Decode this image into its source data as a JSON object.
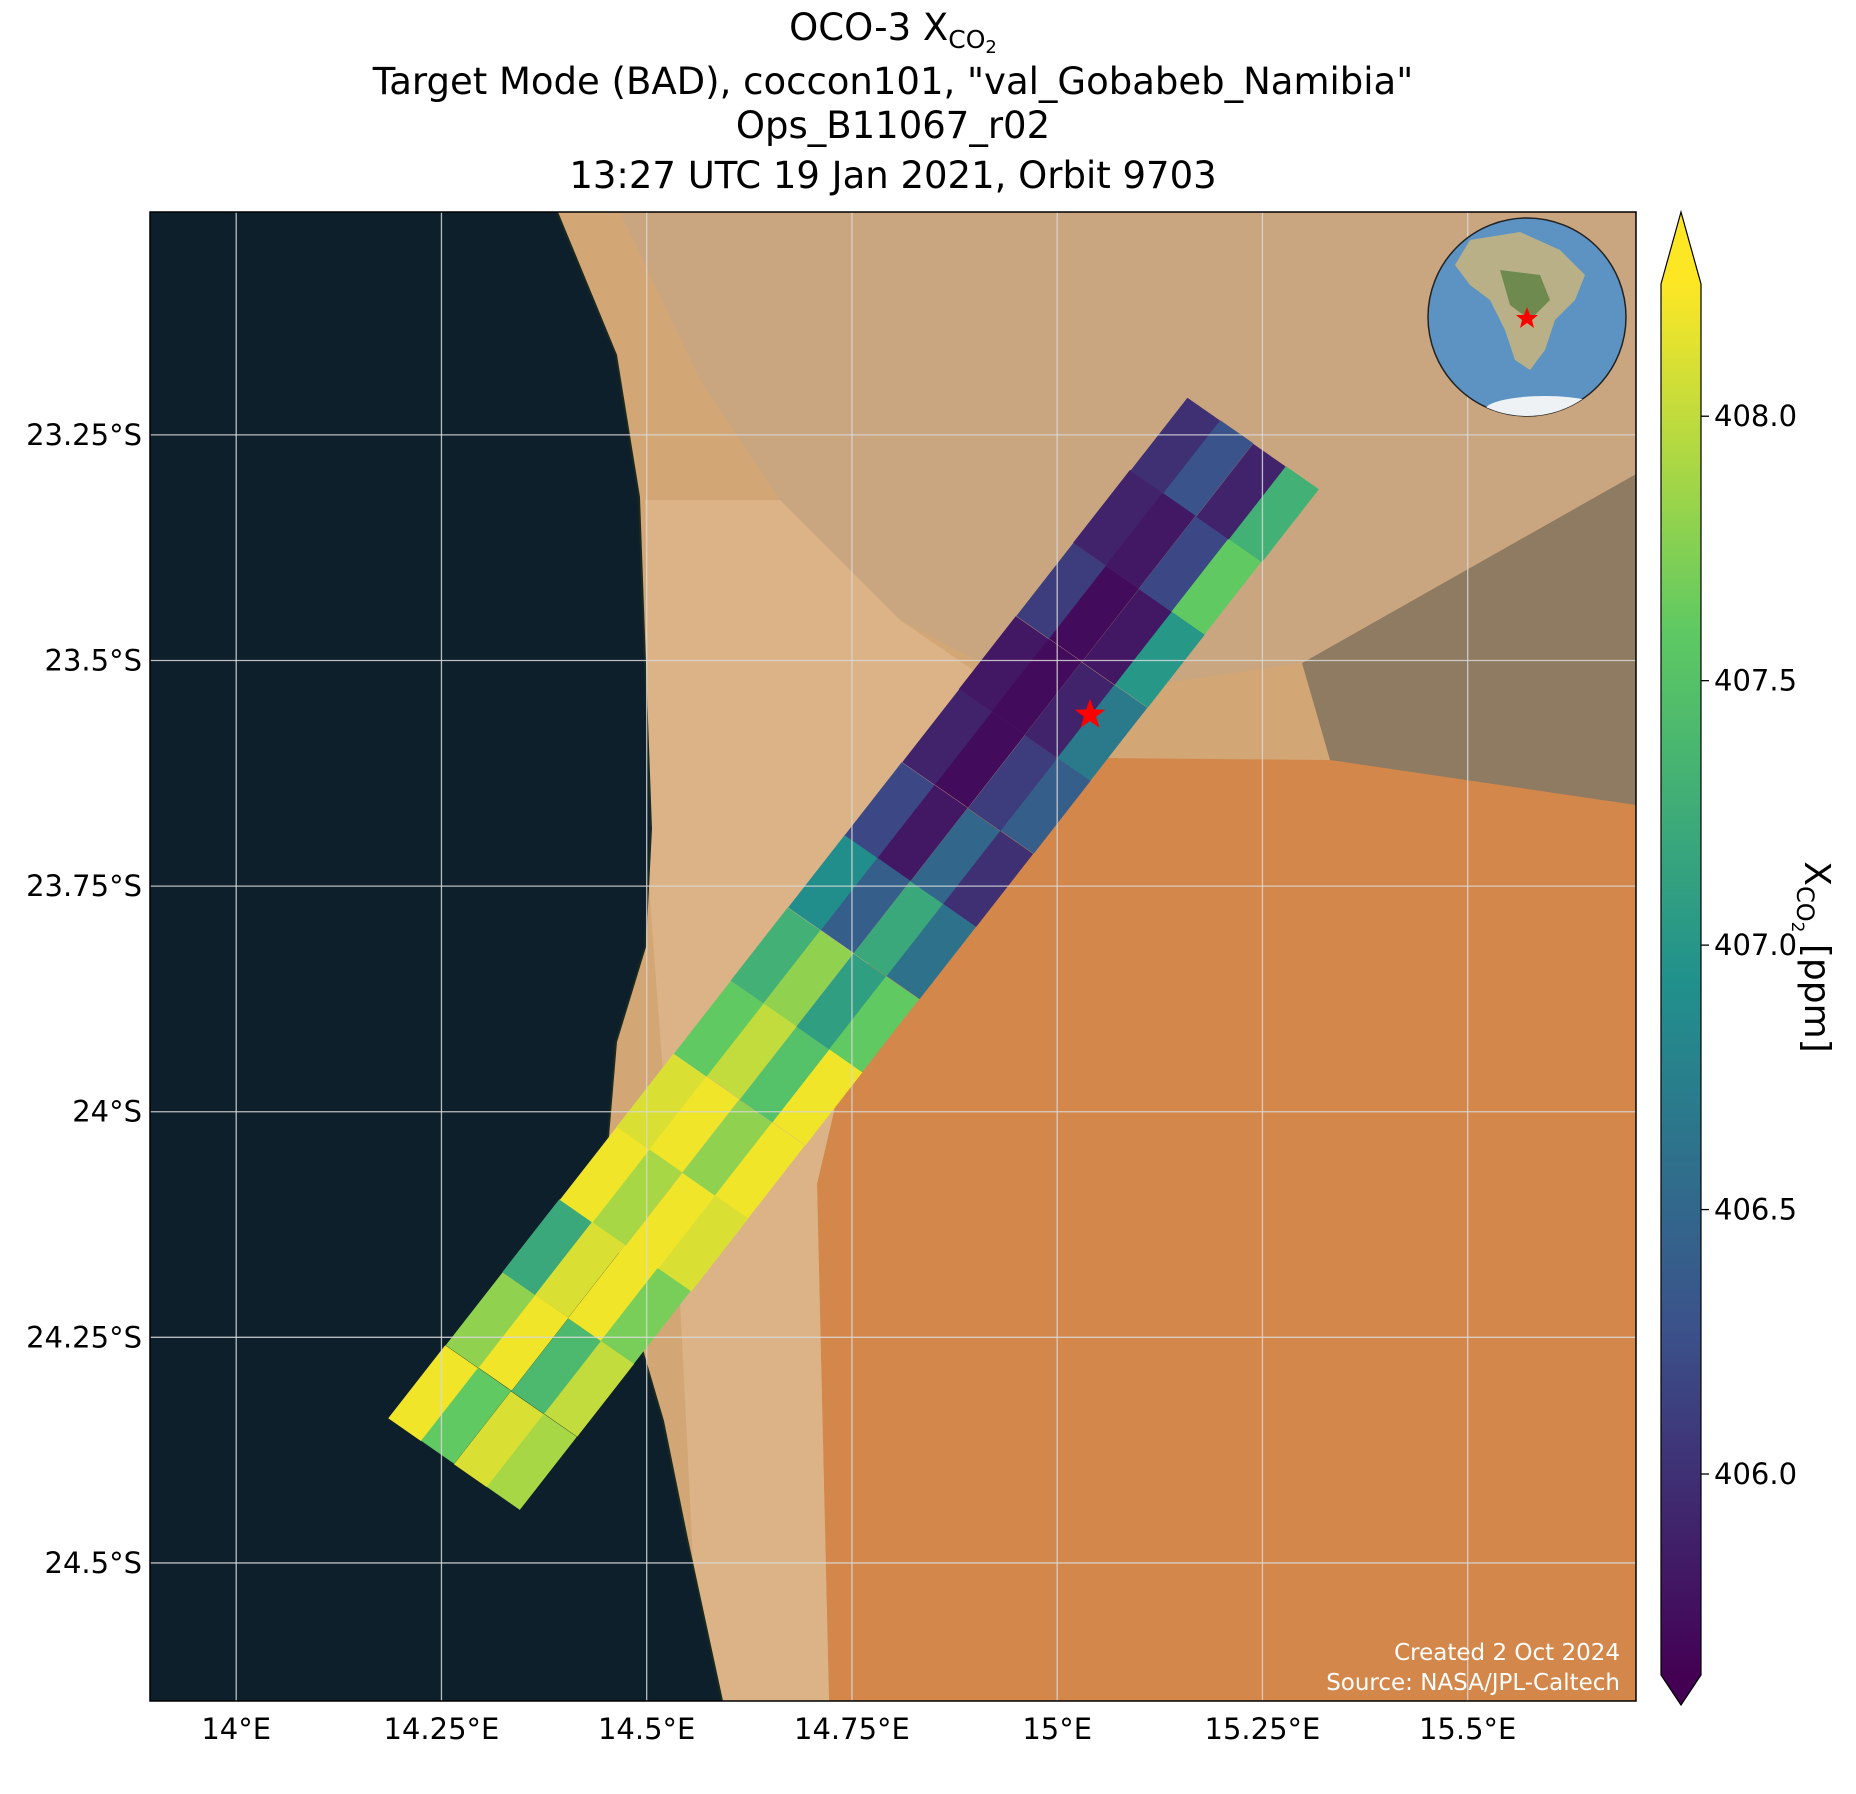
{
  "chart_data": {
    "type": "swath-map",
    "title": {
      "main": "OCO-3 X",
      "sub": "CO",
      "subsub": "2"
    },
    "subtitle": [
      "Target Mode (BAD), coccon101, \"val_Gobabeb_Namibia\"",
      "Ops_B11067_r02",
      "13:27 UTC 19 Jan 2021, Orbit 9703"
    ],
    "credits": [
      "Created 2 Oct 2024",
      "Source: NASA/JPL-Caltech"
    ],
    "xlim": [
      13.895,
      15.705
    ],
    "ylim": [
      -24.653,
      -23.003
    ],
    "xticks": [
      {
        "value": 14,
        "label": "14°E"
      },
      {
        "value": 14.25,
        "label": "14.25°E"
      },
      {
        "value": 14.5,
        "label": "14.5°E"
      },
      {
        "value": 14.75,
        "label": "14.75°E"
      },
      {
        "value": 15,
        "label": "15°E"
      },
      {
        "value": 15.25,
        "label": "15.25°E"
      },
      {
        "value": 15.5,
        "label": "15.5°E"
      }
    ],
    "yticks": [
      {
        "value": -23.25,
        "label": "23.25°S"
      },
      {
        "value": -23.5,
        "label": "23.5°S"
      },
      {
        "value": -23.75,
        "label": "23.75°S"
      },
      {
        "value": -24,
        "label": "24°S"
      },
      {
        "value": -24.25,
        "label": "24.25°S"
      },
      {
        "value": -24.5,
        "label": "24.5°S"
      }
    ],
    "grid": true,
    "colorbar": {
      "label": {
        "main": "X",
        "sub": "CO",
        "subsub": "2",
        "unit": " [ppm]"
      },
      "lim": [
        405.62,
        408.25
      ],
      "ticks": [
        {
          "value": 406,
          "label": "406.0"
        },
        {
          "value": 406.5,
          "label": "406.5"
        },
        {
          "value": 407,
          "label": "407.0"
        },
        {
          "value": 407.5,
          "label": "407.5"
        },
        {
          "value": 408,
          "label": "408.0"
        }
      ],
      "colormap": "viridis"
    },
    "target": {
      "lon": 15.04,
      "lat": -23.56,
      "color": "#ff0000"
    },
    "swath": {
      "lon": [
        14.24,
        14.28,
        14.32,
        14.36,
        14.31,
        14.35,
        14.39,
        14.43,
        14.379,
        14.419,
        14.459,
        14.499,
        14.449,
        14.489,
        14.529,
        14.569,
        14.518,
        14.558,
        14.598,
        14.638,
        14.588,
        14.628,
        14.668,
        14.708,
        14.657,
        14.697,
        14.737,
        14.777,
        14.727,
        14.767,
        14.807,
        14.847,
        14.796,
        14.836,
        14.876,
        14.916,
        14.866,
        14.906,
        14.946,
        14.986,
        14.935,
        14.975,
        15.015,
        15.055,
        15.005,
        15.045,
        15.085,
        15.125,
        15.074,
        15.114,
        15.154,
        15.194,
        15.144,
        15.184,
        15.224,
        15.264
      ],
      "lat": [
        -24.312,
        -24.337,
        -24.363,
        -24.388,
        -24.231,
        -24.256,
        -24.282,
        -24.307,
        -24.15,
        -24.175,
        -24.201,
        -24.226,
        -24.07,
        -24.095,
        -24.121,
        -24.146,
        -23.989,
        -24.014,
        -24.04,
        -24.065,
        -23.908,
        -23.933,
        -23.959,
        -23.984,
        -23.827,
        -23.852,
        -23.878,
        -23.903,
        -23.746,
        -23.771,
        -23.797,
        -23.822,
        -23.666,
        -23.691,
        -23.717,
        -23.742,
        -23.585,
        -23.61,
        -23.636,
        -23.661,
        -23.504,
        -23.529,
        -23.555,
        -23.58,
        -23.423,
        -23.448,
        -23.474,
        -23.499,
        -23.342,
        -23.367,
        -23.393,
        -23.418,
        -23.262,
        -23.287,
        -23.313,
        -23.338
      ],
      "values": [
        408.2,
        407.6,
        408.1,
        407.9,
        407.8,
        408.2,
        407.4,
        408.0,
        407.2,
        408.1,
        408.2,
        407.7,
        408.2,
        407.9,
        408.2,
        408.1,
        408.1,
        408.2,
        407.8,
        408.2,
        407.6,
        408.0,
        407.5,
        408.2,
        407.3,
        407.8,
        407.1,
        407.6,
        406.9,
        406.4,
        407.2,
        406.6,
        406.2,
        405.8,
        406.5,
        406.0,
        405.9,
        405.7,
        406.1,
        406.4,
        405.8,
        405.7,
        405.9,
        406.7,
        406.1,
        405.7,
        405.8,
        407.0,
        405.9,
        405.8,
        406.2,
        407.6,
        406.0,
        406.3,
        405.9,
        407.3
      ]
    }
  }
}
